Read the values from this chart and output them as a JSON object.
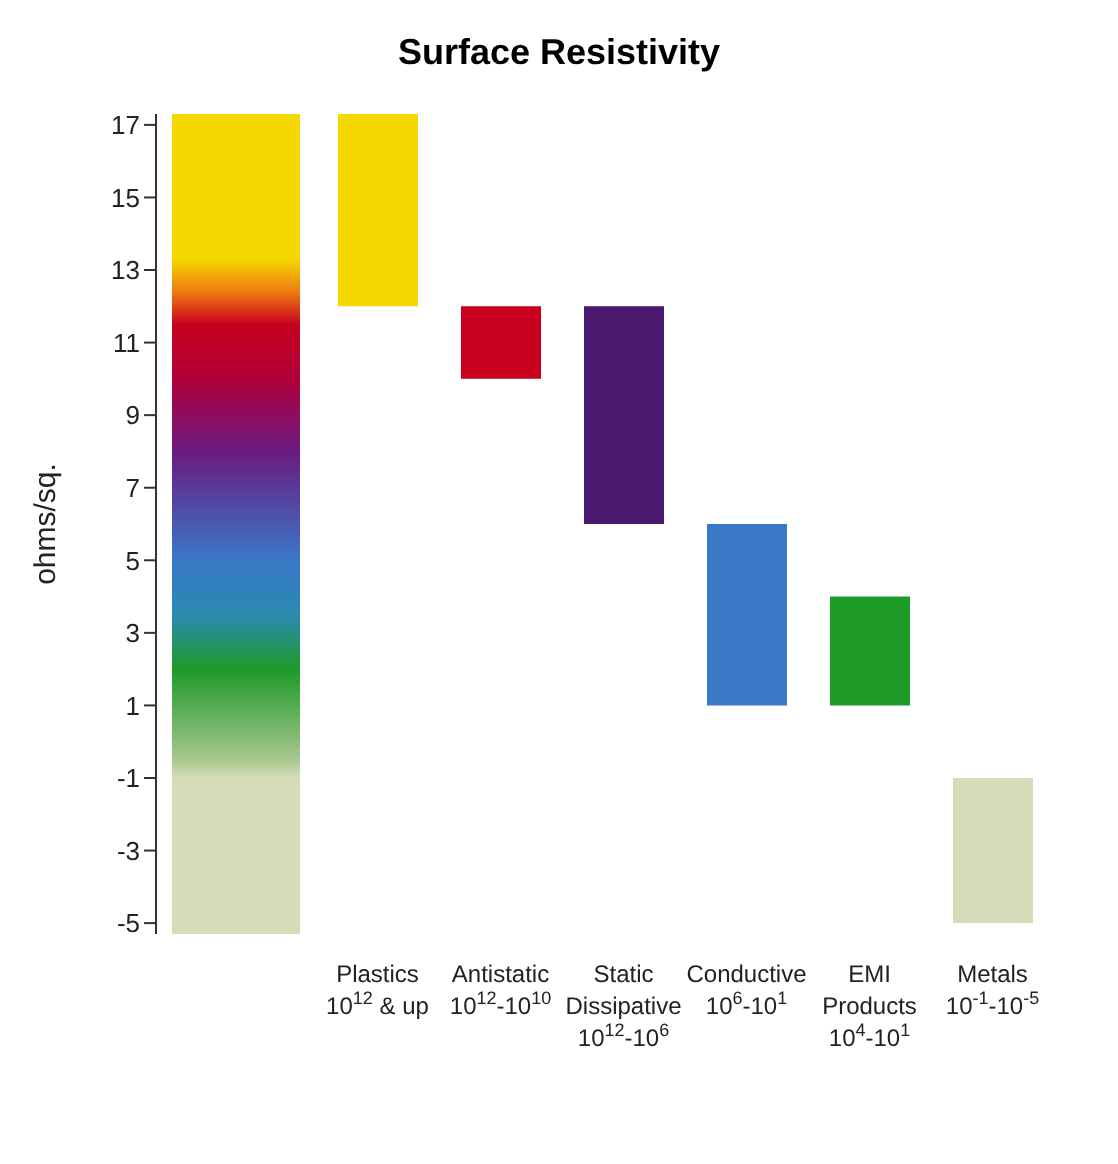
{
  "chart_data": {
    "type": "bar",
    "title": "Surface Resistivity",
    "ylabel": "ohms/sq.",
    "categories": [
      "Plastics 10$^{12}$ & up",
      "Antistatic 10$^{12}$-10$^{10}$",
      "Static Dissipative 10$^{12}$-10$^{6}$",
      "Conductive 10$^{6}$-10$^{1}$",
      "EMI Products 10$^{4}$-10$^{1}$",
      "Metals 10$^{-1}$-10$^{-5}$"
    ],
    "base": [
      12,
      10,
      6,
      1,
      1,
      -5
    ],
    "values": [
      5.3,
      2,
      6,
      5,
      3,
      4
    ],
    "colors": [
      "#f5d800",
      "#c8001e",
      "#4b1870",
      "#3a78c8",
      "#1e9a28",
      "#d5ddb8"
    ],
    "ylim": [
      -5.3,
      17.3
    ],
    "yticks": [
      -5,
      -3,
      -1,
      1,
      3,
      5,
      7,
      9,
      11,
      13,
      15,
      17
    ],
    "grid": false,
    "legend": false
  }
}
